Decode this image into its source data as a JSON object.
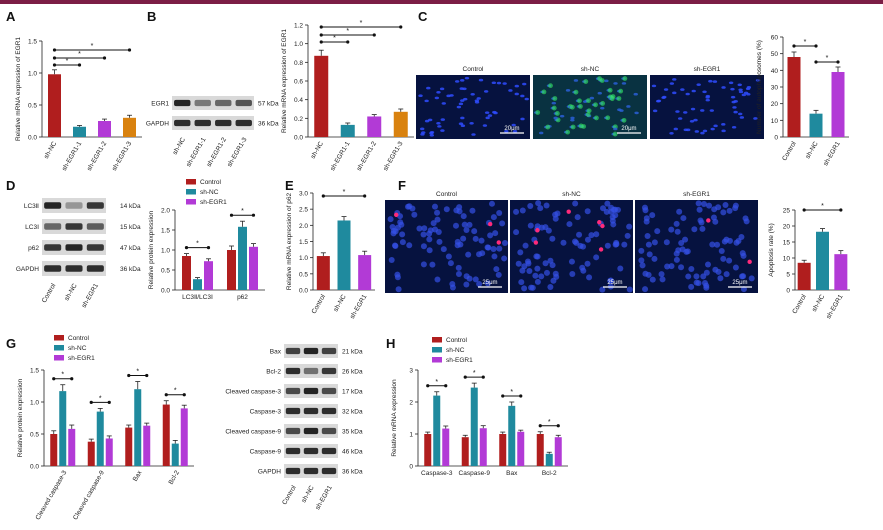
{
  "colors": {
    "red": "#b01e1e",
    "teal": "#1f8a9e",
    "magenta": "#b23ad6",
    "orange": "#d9820f",
    "axis": "#222222",
    "blot_bg": "#1c1c1c",
    "micro_bg": "#06123f"
  },
  "panels": {
    "A": {
      "letter": "A",
      "chart_data": {
        "type": "bar",
        "categories": [
          "sh-NC",
          "sh-EGR1-1",
          "sh-EGR1-2",
          "sh-EGR1-3"
        ],
        "values": [
          0.98,
          0.16,
          0.25,
          0.3
        ],
        "errors": [
          0.07,
          0.02,
          0.03,
          0.04
        ],
        "colors": [
          "#b01e1e",
          "#1f8a9e",
          "#b23ad6",
          "#d9820f"
        ],
        "ylabel": "Relative mRNA expression of EGR1",
        "ylim": [
          0,
          1.5
        ],
        "yticks": [
          "0.0",
          "0.5",
          "1.0",
          "1.5"
        ],
        "sig": [
          "*",
          "*",
          "*"
        ]
      }
    },
    "B": {
      "letter": "B",
      "blot": {
        "rows": [
          {
            "label": "EGR1",
            "kda": "57 kDa"
          },
          {
            "label": "GAPDH",
            "kda": "36 kDa"
          }
        ],
        "lanes": [
          "sh-NC",
          "sh-EGR1-1",
          "sh-EGR1-2",
          "sh-EGR1-3"
        ]
      },
      "chart_data": {
        "type": "bar",
        "categories": [
          "sh-NC",
          "sh-EGR1-1",
          "sh-EGR1-2",
          "sh-EGR1-3"
        ],
        "values": [
          0.87,
          0.13,
          0.22,
          0.27
        ],
        "errors": [
          0.06,
          0.02,
          0.02,
          0.03
        ],
        "colors": [
          "#b01e1e",
          "#1f8a9e",
          "#b23ad6",
          "#d9820f"
        ],
        "ylabel": "Relative mRNA expression of EGR1",
        "ylim": [
          0,
          1.2
        ],
        "yticks": [
          "0.0",
          "0.2",
          "0.4",
          "0.6",
          "0.8",
          "1.0",
          "1.2"
        ],
        "sig": [
          "*",
          "*",
          "*"
        ]
      }
    },
    "C": {
      "letter": "C",
      "images": [
        {
          "label": "Control",
          "scale": "20μm"
        },
        {
          "label": "sh-NC",
          "scale": "20μm"
        },
        {
          "label": "sh-EGR1",
          "scale": ""
        }
      ],
      "chart_data": {
        "type": "bar",
        "categories": [
          "Control",
          "sh-NC",
          "sh-EGR1"
        ],
        "values": [
          48,
          14,
          39
        ],
        "errors": [
          3,
          2,
          3
        ],
        "colors": [
          "#b01e1e",
          "#1f8a9e",
          "#b23ad6"
        ],
        "ylabel": "Number of autophagosomes (%)",
        "ylim": [
          0,
          60
        ],
        "yticks": [
          "0",
          "10",
          "20",
          "30",
          "40",
          "50",
          "60"
        ],
        "sig": [
          "*",
          "*"
        ]
      }
    },
    "D": {
      "letter": "D",
      "blot": {
        "rows": [
          {
            "label": "LC3Ⅱ",
            "kda": "14 kDa"
          },
          {
            "label": "LC3Ⅰ",
            "kda": "15 kDa"
          },
          {
            "label": "p62",
            "kda": "47 kDa"
          },
          {
            "label": "GAPDH",
            "kda": "36 kDa"
          }
        ],
        "lanes": [
          "Control",
          "sh-NC",
          "sh-EGR1"
        ]
      },
      "chart_data": {
        "type": "bar",
        "categories": [
          "LC3Ⅱ/LC3Ⅰ",
          "p62"
        ],
        "series": [
          {
            "name": "Control",
            "values": [
              0.85,
              1.0
            ],
            "errors": [
              0.06,
              0.1
            ]
          },
          {
            "name": "sh-NC",
            "values": [
              0.27,
              1.58
            ],
            "errors": [
              0.04,
              0.14
            ]
          },
          {
            "name": "sh-EGR1",
            "values": [
              0.72,
              1.08
            ],
            "errors": [
              0.06,
              0.08
            ]
          }
        ],
        "colors": [
          "#b01e1e",
          "#1f8a9e",
          "#b23ad6"
        ],
        "ylabel": "Relative protein expression",
        "ylim": [
          0,
          2.0
        ],
        "yticks": [
          "0.0",
          "0.5",
          "1.0",
          "1.5",
          "2.0"
        ],
        "legend": "top",
        "sig": [
          "*",
          "*",
          "*",
          "*"
        ]
      }
    },
    "E": {
      "letter": "E",
      "chart_data": {
        "type": "bar",
        "categories": [
          "Control",
          "sh-NC",
          "sh-EGR1"
        ],
        "values": [
          1.05,
          2.15,
          1.08
        ],
        "errors": [
          0.1,
          0.12,
          0.12
        ],
        "colors": [
          "#b01e1e",
          "#1f8a9e",
          "#b23ad6"
        ],
        "ylabel": "Relative mRNA expression of p62",
        "ylim": [
          0,
          3.0
        ],
        "yticks": [
          "0.0",
          "0.5",
          "1.0",
          "1.5",
          "2.0",
          "2.5",
          "3.0"
        ],
        "sig": [
          "*",
          "*"
        ]
      }
    },
    "F": {
      "letter": "F",
      "images": [
        {
          "label": "Control",
          "scale": "25μm"
        },
        {
          "label": "sh-NC",
          "scale": "25μm"
        },
        {
          "label": "sh-EGR1",
          "scale": "25μm"
        }
      ],
      "chart_data": {
        "type": "bar",
        "categories": [
          "Control",
          "sh-NC",
          "sh-EGR1"
        ],
        "values": [
          8.5,
          18.2,
          11.2
        ],
        "errors": [
          0.8,
          1.0,
          1.1
        ],
        "colors": [
          "#b01e1e",
          "#1f8a9e",
          "#b23ad6"
        ],
        "ylabel": "Apoptosis rate (%)",
        "ylim": [
          0,
          25
        ],
        "yticks": [
          "0",
          "5",
          "10",
          "15",
          "20",
          "25"
        ],
        "sig": [
          "*",
          "*"
        ]
      }
    },
    "G": {
      "letter": "G",
      "chart_data": {
        "type": "bar",
        "categories": [
          "Cleaved caspase-3",
          "Cleaved caspase-9",
          "Bax",
          "Bcl-2"
        ],
        "series": [
          {
            "name": "Control",
            "values": [
              0.5,
              0.38,
              0.6,
              0.96
            ],
            "errors": [
              0.05,
              0.04,
              0.04,
              0.06
            ]
          },
          {
            "name": "sh-NC",
            "values": [
              1.17,
              0.85,
              1.2,
              0.35
            ],
            "errors": [
              0.1,
              0.05,
              0.12,
              0.05
            ]
          },
          {
            "name": "sh-EGR1",
            "values": [
              0.58,
              0.43,
              0.63,
              0.9
            ],
            "errors": [
              0.06,
              0.04,
              0.04,
              0.05
            ]
          }
        ],
        "colors": [
          "#b01e1e",
          "#1f8a9e",
          "#b23ad6"
        ],
        "ylabel": "Relative protein expression",
        "ylim": [
          0,
          1.5
        ],
        "yticks": [
          "0.0",
          "0.5",
          "1.0",
          "1.5"
        ],
        "legend": "top-left"
      },
      "blot": {
        "rows": [
          {
            "label": "Bax",
            "kda": "21 kDa"
          },
          {
            "label": "Bcl-2",
            "kda": "26 kDa"
          },
          {
            "label": "Cleaved caspase-3",
            "kda": "17 kDa"
          },
          {
            "label": "Caspase-3",
            "kda": "32 kDa"
          },
          {
            "label": "Cleaved caspase-9",
            "kda": "35 kDa"
          },
          {
            "label": "Caspase-9",
            "kda": "46 kDa"
          },
          {
            "label": "GAPDH",
            "kda": "36 kDa"
          }
        ],
        "lanes": [
          "Control",
          "sh-NC",
          "sh-EGR1"
        ]
      }
    },
    "H": {
      "letter": "H",
      "chart_data": {
        "type": "bar",
        "categories": [
          "Caspase-3",
          "Caspase-9",
          "Bax",
          "Bcl-2"
        ],
        "series": [
          {
            "name": "Control",
            "values": [
              1.0,
              0.9,
              1.0,
              1.0
            ],
            "errors": [
              0.06,
              0.06,
              0.06,
              0.07
            ]
          },
          {
            "name": "sh-NC",
            "values": [
              2.2,
              2.45,
              1.88,
              0.38
            ],
            "errors": [
              0.12,
              0.14,
              0.12,
              0.05
            ]
          },
          {
            "name": "sh-EGR1",
            "values": [
              1.17,
              1.18,
              1.07,
              0.9
            ],
            "errors": [
              0.08,
              0.08,
              0.05,
              0.06
            ]
          }
        ],
        "colors": [
          "#b01e1e",
          "#1f8a9e",
          "#b23ad6"
        ],
        "ylabel": "Relative mRNA expression",
        "ylim": [
          0,
          3
        ],
        "yticks": [
          "0",
          "1",
          "2",
          "3"
        ],
        "legend": "top-left"
      }
    }
  }
}
